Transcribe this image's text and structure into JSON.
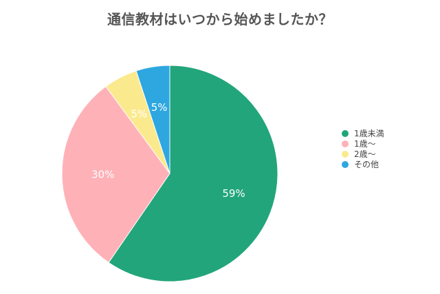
{
  "title": "通信教材はいつから始めましたか？",
  "chart_data": {
    "type": "pie",
    "title": "通信教材はいつから始めましたか？",
    "legend_position": "right",
    "slices": [
      {
        "label": "1歳未満",
        "value": 59,
        "display": "59%",
        "color": "#22A57A"
      },
      {
        "label": "1歳〜",
        "value": 30,
        "display": "30%",
        "color": "#FFB1B8"
      },
      {
        "label": "2歳〜",
        "value": 5,
        "display": "5%",
        "color": "#FBEA8D"
      },
      {
        "label": "その他",
        "value": 5,
        "display": "5%",
        "color": "#2EA7E0"
      }
    ]
  }
}
